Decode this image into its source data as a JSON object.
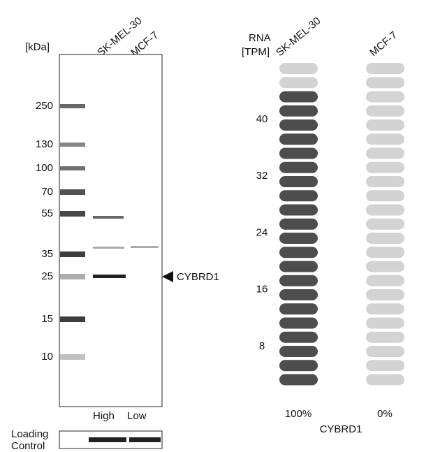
{
  "blot": {
    "unit_label": "[kDa]",
    "lanes": [
      "SK-MEL-30",
      "MCF-7"
    ],
    "markers": [
      "250",
      "130",
      "100",
      "70",
      "55",
      "35",
      "25",
      "15",
      "10"
    ],
    "target": "CYBRD1",
    "lane_levels": [
      "High",
      "Low"
    ],
    "loading_control": [
      "Loading",
      "Control"
    ]
  },
  "rna": {
    "header": [
      "RNA",
      "[TPM]"
    ],
    "cell_lines": [
      "SK-MEL-30",
      "MCF-7"
    ],
    "ticks": [
      8,
      16,
      24,
      32,
      40
    ],
    "percents": [
      "100%",
      "0%"
    ],
    "gene": "CYBRD1"
  }
}
